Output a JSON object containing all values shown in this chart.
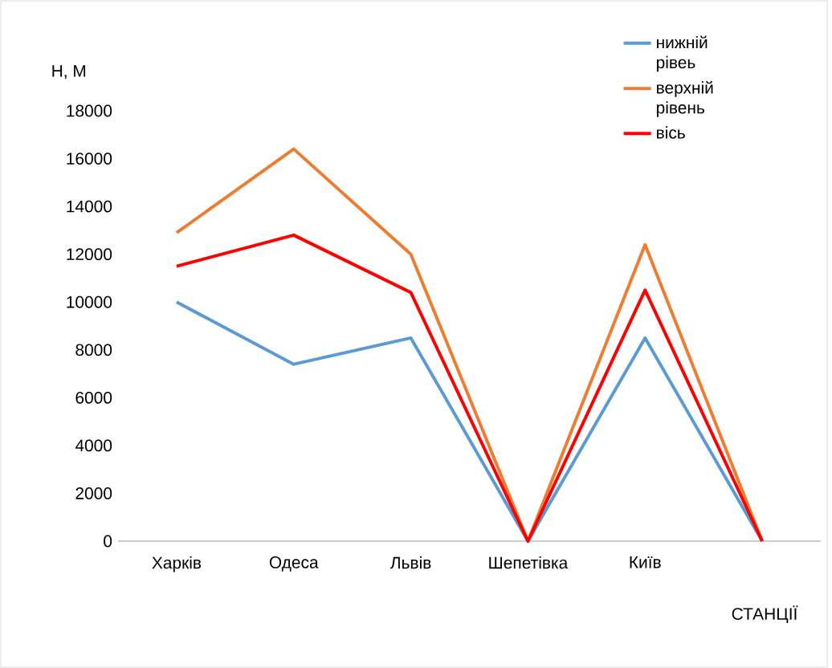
{
  "chart_data": {
    "type": "line",
    "xlabel": "СТАНЦІЇ",
    "ylabel": "H, M",
    "categories": [
      "Харків",
      "Одеса",
      "Львів",
      "Шепетівка",
      "Київ",
      null
    ],
    "series": [
      {
        "name": "нижній рівеь",
        "color": "#5b9bd5",
        "values": [
          10000,
          7400,
          8500,
          0,
          8500,
          0
        ]
      },
      {
        "name": "верхній рівень",
        "color": "#ed7d31",
        "values": [
          12900,
          16400,
          12000,
          0,
          12400,
          0
        ]
      },
      {
        "name": "вісь",
        "color": "#ff0000",
        "values": [
          11500,
          12800,
          10400,
          0,
          10500,
          0
        ]
      }
    ],
    "ylim": [
      0,
      18000
    ],
    "yticks": [
      0,
      2000,
      4000,
      6000,
      8000,
      10000,
      12000,
      14000,
      16000,
      18000
    ],
    "legend": "top right",
    "marker": "none",
    "line_style": "solid",
    "grid": false
  }
}
